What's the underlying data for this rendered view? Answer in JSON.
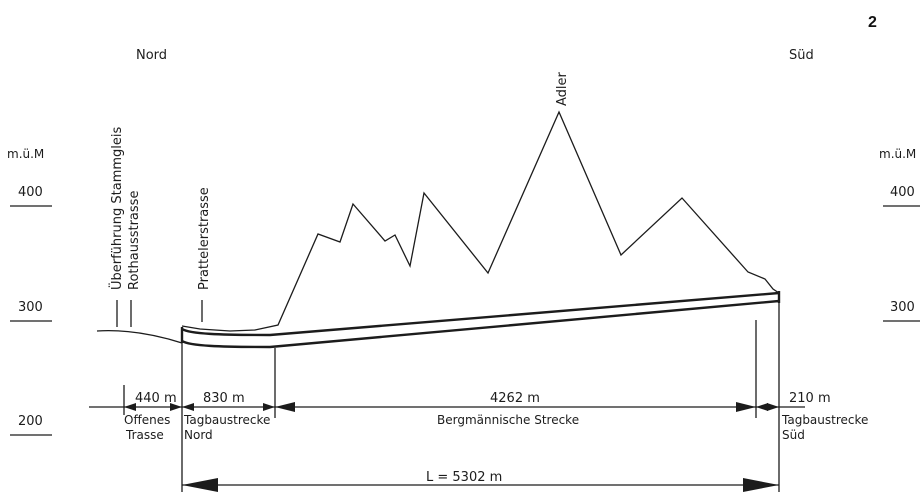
{
  "page_number": "2",
  "directions": {
    "north": "Nord",
    "south": "Süd"
  },
  "elevation_axis": {
    "unit": "m.ü.M",
    "ticks": [
      "400",
      "300",
      "200"
    ]
  },
  "features": {
    "stammgleis": "Überführung Stammgleis",
    "rothaus": "Rothausstrasse",
    "prattler": "Prattelerstrasse",
    "adler": "Adler"
  },
  "segments": [
    {
      "length": "440 m",
      "name": [
        "Offenes",
        "Trasse"
      ]
    },
    {
      "length": "830 m",
      "name": [
        "Tagbaustrecke",
        "Nord"
      ]
    },
    {
      "length": "4262 m",
      "name": [
        "Bergmännische Strecke"
      ]
    },
    {
      "length": "210 m",
      "name": [
        "Tagbaustrecke",
        "Süd"
      ]
    }
  ],
  "total_length": "L = 5302 m"
}
